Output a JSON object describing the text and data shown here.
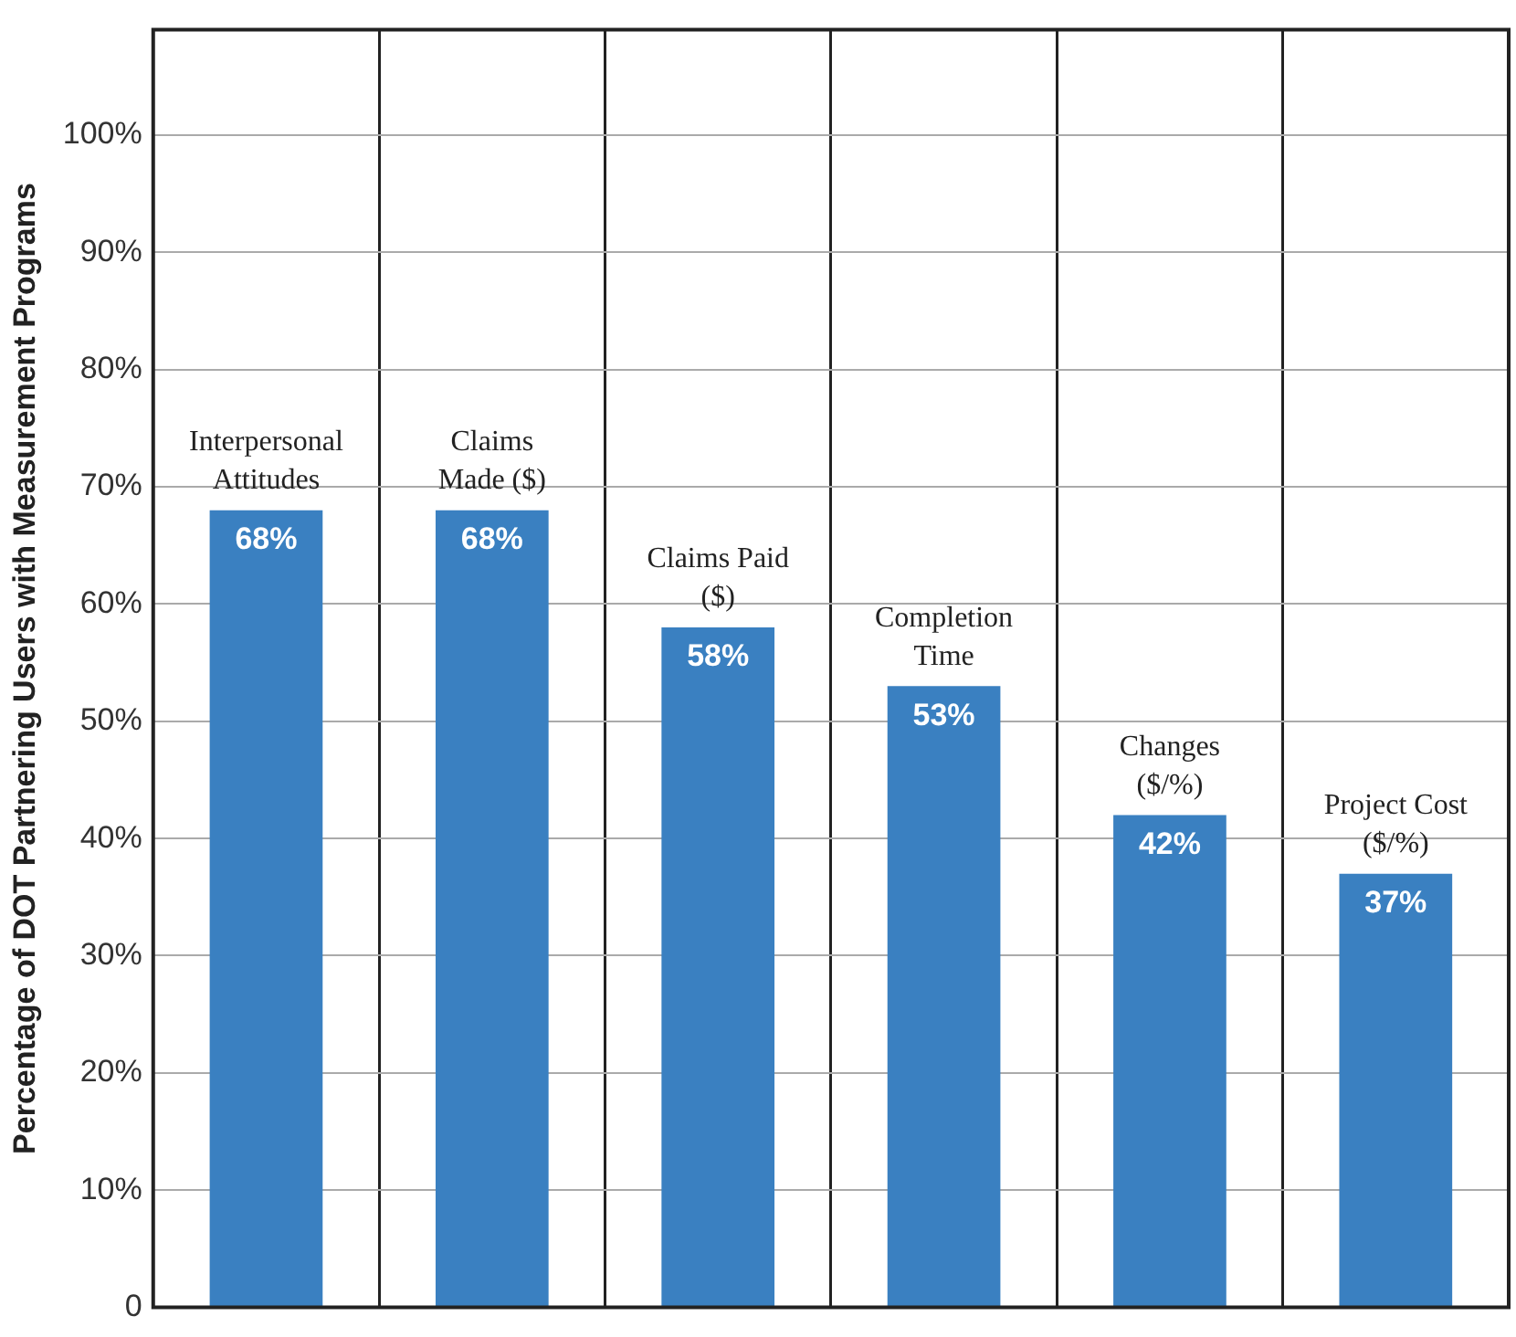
{
  "chart_data": {
    "type": "bar",
    "ylabel": "Percentage of DOT Partnering Users with Measurement Programs",
    "categories": [
      "Interpersonal Attitudes",
      "Claims Made ($)",
      "Claims Paid ($)",
      "Completion Time",
      "Changes ($/%)",
      "Project Cost ($/%)"
    ],
    "values": [
      68,
      68,
      58,
      53,
      42,
      37
    ],
    "value_labels": [
      "68%",
      "68%",
      "58%",
      "53%",
      "42%",
      "37%"
    ],
    "color": "#3a80c1",
    "ylim": [
      0,
      109
    ],
    "yticks": [
      {
        "value": 0,
        "label": "0"
      },
      {
        "value": 10,
        "label": "10%"
      },
      {
        "value": 20,
        "label": "20%"
      },
      {
        "value": 30,
        "label": "30%"
      },
      {
        "value": 40,
        "label": "40%"
      },
      {
        "value": 50,
        "label": "50%"
      },
      {
        "value": 60,
        "label": "60%"
      },
      {
        "value": 70,
        "label": "70%"
      },
      {
        "value": 80,
        "label": "80%"
      },
      {
        "value": 90,
        "label": "90%"
      },
      {
        "value": 100,
        "label": "100%"
      }
    ],
    "grid": true,
    "legend": false
  }
}
